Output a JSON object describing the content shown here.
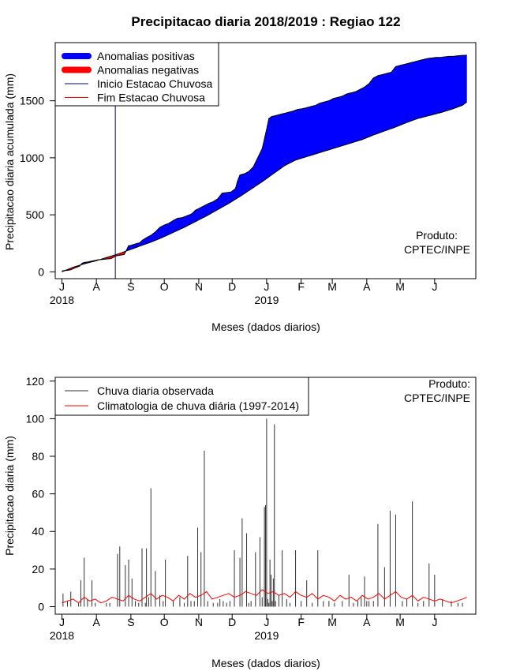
{
  "title": "Precipitacao diaria 2018/2019 : Regiao 122",
  "credit": [
    "Produto:",
    "CPTEC/INPE"
  ],
  "month_ticks": [
    "J",
    "A",
    "S",
    "O",
    "N",
    "D",
    "J",
    "F",
    "M",
    "A",
    "M",
    "J"
  ],
  "year_labels": [
    {
      "label": "2018",
      "month_index": 0
    },
    {
      "label": "2019",
      "month_index": 6
    }
  ],
  "chart_data": [
    {
      "type": "area",
      "xlabel": "Meses (dados diarios)",
      "ylabel": "Precipitacao diaria acumulada (mm)",
      "x_unit": "days since 2018-07-01",
      "xlim": [
        -6,
        372
      ],
      "ylim": [
        -60,
        2010
      ],
      "yticks": [
        0,
        500,
        1000,
        1500
      ],
      "grid": false,
      "legend_position": "top-left",
      "legend": [
        {
          "label": "Anomalias positivas",
          "color": "#0000ff",
          "style": "thick"
        },
        {
          "label": "Anomalias negativas",
          "color": "#ff0000",
          "style": "thick"
        },
        {
          "label": "Inicio Estacao Chuvosa",
          "color": "#00008b",
          "style": "line"
        },
        {
          "label": "Fim Estacao Chuvosa",
          "color": "#ff0000",
          "style": "line"
        }
      ],
      "rainy_season_start_day": 48,
      "observed_cumulative": {
        "x": [
          0,
          5,
          8,
          12,
          16,
          18,
          20,
          24,
          28,
          30,
          32,
          36,
          40,
          44,
          46,
          48,
          52,
          56,
          58,
          60,
          62,
          66,
          70,
          72,
          76,
          80,
          84,
          88,
          92,
          96,
          100,
          104,
          108,
          112,
          116,
          118,
          120,
          124,
          128,
          132,
          136,
          140,
          144,
          148,
          152,
          156,
          158,
          160,
          164,
          168,
          172,
          176,
          180,
          184,
          186,
          187,
          188,
          192,
          196,
          200,
          204,
          208,
          212,
          216,
          220,
          224,
          228,
          232,
          236,
          240,
          242,
          244,
          248,
          252,
          256,
          260,
          264,
          268,
          272,
          276,
          280,
          284,
          288,
          292,
          296,
          300,
          304,
          308,
          312,
          316,
          320,
          324,
          328,
          332,
          336,
          340,
          344,
          348,
          352,
          356,
          360,
          364
        ],
        "y": [
          8,
          13,
          18,
          36,
          50,
          75,
          82,
          88,
          97,
          100,
          105,
          108,
          112,
          116,
          125,
          138,
          145,
          152,
          190,
          230,
          232,
          245,
          255,
          275,
          300,
          320,
          350,
          390,
          410,
          425,
          450,
          470,
          475,
          490,
          505,
          520,
          540,
          560,
          580,
          600,
          615,
          640,
          690,
          695,
          700,
          730,
          800,
          850,
          860,
          880,
          920,
          1000,
          1080,
          1250,
          1345,
          1350,
          1360,
          1370,
          1380,
          1390,
          1400,
          1410,
          1425,
          1430,
          1440,
          1450,
          1460,
          1480,
          1490,
          1500,
          1510,
          1520,
          1530,
          1540,
          1560,
          1570,
          1580,
          1600,
          1620,
          1650,
          1700,
          1720,
          1730,
          1740,
          1750,
          1800,
          1810,
          1820,
          1830,
          1840,
          1850,
          1860,
          1870,
          1875,
          1880,
          1880,
          1885,
          1890,
          1890,
          1895,
          1898,
          1900
        ]
      },
      "climatology_cumulative": {
        "x": [
          0,
          10,
          20,
          30,
          40,
          50,
          60,
          70,
          80,
          90,
          100,
          110,
          120,
          130,
          140,
          150,
          160,
          170,
          180,
          190,
          200,
          210,
          220,
          230,
          240,
          250,
          260,
          270,
          280,
          290,
          300,
          310,
          320,
          330,
          340,
          350,
          360,
          364
        ],
        "y": [
          0,
          40,
          70,
          95,
          125,
          155,
          190,
          225,
          260,
          300,
          345,
          390,
          440,
          490,
          545,
          600,
          660,
          725,
          790,
          860,
          930,
          980,
          1010,
          1040,
          1070,
          1100,
          1130,
          1160,
          1200,
          1235,
          1270,
          1310,
          1345,
          1370,
          1395,
          1425,
          1460,
          1490
        ]
      }
    },
    {
      "type": "bar",
      "xlabel": "Meses (dados diarios)",
      "ylabel": "Precipitacao diaria (mm)",
      "x_unit": "days since 2018-07-01",
      "xlim": [
        -6,
        372
      ],
      "ylim": [
        -4,
        122
      ],
      "yticks": [
        0,
        20,
        40,
        60,
        80,
        100,
        120
      ],
      "grid": false,
      "legend_position": "top-left",
      "legend": [
        {
          "label": "Chuva diaria observada",
          "color": "#333333",
          "style": "line"
        },
        {
          "label": "Climatologia de chuva diária (1997-2014)",
          "color": "#ff0000",
          "style": "line"
        }
      ],
      "observed_daily": {
        "x": [
          1,
          5,
          8,
          15,
          17,
          20,
          23,
          27,
          30,
          40,
          43,
          50,
          52,
          57,
          60,
          63,
          66,
          69,
          72,
          75,
          76,
          78,
          80,
          84,
          88,
          91,
          93,
          100,
          106,
          110,
          113,
          116,
          119,
          122,
          125,
          128,
          131,
          136,
          140,
          142,
          145,
          148,
          151,
          155,
          160,
          162,
          166,
          168,
          170,
          174,
          178,
          180,
          182,
          183,
          184,
          185,
          186,
          187,
          188,
          189,
          190,
          191,
          192,
          195,
          198,
          202,
          205,
          210,
          215,
          220,
          225,
          230,
          235,
          240,
          245,
          252,
          258,
          262,
          266,
          269,
          272,
          274,
          276,
          280,
          284,
          290,
          295,
          300,
          306,
          310,
          315,
          320,
          325,
          330,
          335,
          342,
          350,
          356,
          360
        ],
        "values": [
          7,
          3,
          8,
          2,
          14,
          26,
          4,
          14,
          2,
          2,
          2,
          28,
          32,
          22,
          25,
          15,
          3,
          2,
          31,
          2,
          31,
          5,
          63,
          19,
          6,
          3,
          25,
          3,
          5,
          2,
          27,
          3,
          3,
          42,
          29,
          83,
          3,
          2,
          2,
          4,
          3,
          2,
          3,
          30,
          26,
          47,
          39,
          2,
          3,
          29,
          37,
          5,
          53,
          54,
          100,
          4,
          2,
          25,
          17,
          3,
          15,
          97,
          3,
          6,
          30,
          4,
          2,
          30,
          3,
          14,
          2,
          30,
          3,
          3,
          2,
          3,
          17,
          2,
          3,
          5,
          16,
          3,
          3,
          3,
          44,
          21,
          51,
          49,
          3,
          4,
          56,
          2,
          3,
          23,
          17,
          4,
          3,
          2,
          2
        ]
      },
      "climatology_daily": {
        "x": [
          0,
          5,
          10,
          15,
          20,
          25,
          30,
          35,
          40,
          45,
          50,
          55,
          60,
          65,
          70,
          75,
          80,
          85,
          90,
          95,
          100,
          105,
          110,
          115,
          120,
          125,
          130,
          135,
          140,
          145,
          150,
          155,
          160,
          165,
          170,
          175,
          180,
          185,
          190,
          195,
          200,
          205,
          210,
          215,
          220,
          225,
          230,
          235,
          240,
          245,
          250,
          255,
          260,
          265,
          270,
          275,
          280,
          285,
          290,
          295,
          300,
          305,
          310,
          315,
          320,
          325,
          330,
          335,
          340,
          345,
          350,
          355,
          360,
          364
        ],
        "values": [
          2,
          3,
          4,
          2,
          5,
          3,
          4,
          2,
          3,
          5,
          4,
          3,
          6,
          4,
          3,
          5,
          7,
          4,
          6,
          5,
          3,
          6,
          4,
          7,
          5,
          6,
          8,
          4,
          5,
          6,
          7,
          5,
          6,
          8,
          7,
          6,
          9,
          7,
          8,
          6,
          7,
          5,
          8,
          6,
          5,
          7,
          4,
          6,
          5,
          3,
          6,
          4,
          5,
          3,
          6,
          4,
          5,
          7,
          4,
          6,
          8,
          5,
          4,
          6,
          3,
          5,
          4,
          3,
          4,
          3,
          2,
          3,
          4,
          5
        ]
      }
    }
  ]
}
